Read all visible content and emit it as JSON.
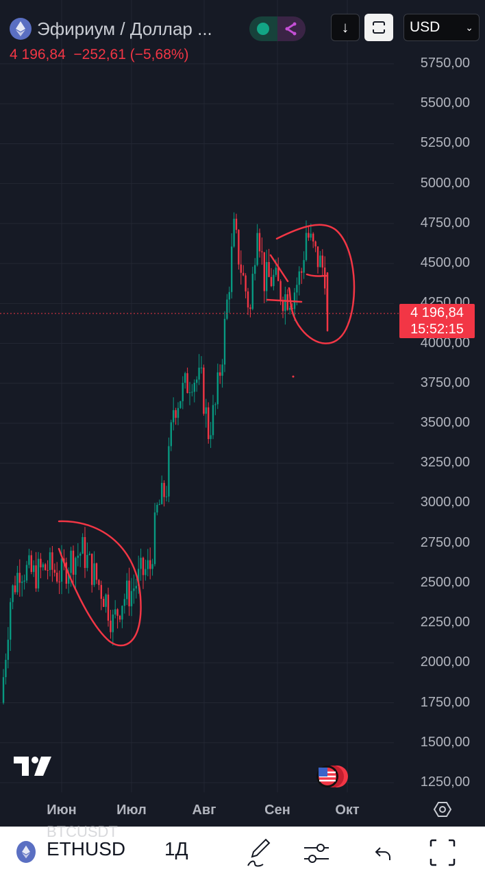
{
  "header": {
    "title": "Эфириум / Доллар ...",
    "price": "4 196,84",
    "change": "−252,61 (−5,68%)",
    "currency": "USD",
    "download_icon": "arrow-down-icon",
    "layout_icon": "frame-icon"
  },
  "price_axis": {
    "labels": [
      "5750,00",
      "5500,00",
      "5250,00",
      "5000,00",
      "4750,00",
      "4500,00",
      "4250,00",
      "4000,00",
      "3750,00",
      "3500,00",
      "3250,00",
      "3000,00",
      "2750,00",
      "2500,00",
      "2250,00",
      "2000,00",
      "1750,00",
      "1500,00",
      "1250,00"
    ],
    "current_price": "4 196,84",
    "countdown": "15:52:15"
  },
  "time_axis": {
    "labels": [
      "Июн",
      "Июл",
      "Авг",
      "Сен",
      "Окт"
    ]
  },
  "colors": {
    "up": "#089981",
    "down": "#f23645",
    "background": "#161a25",
    "annotation": "#f23645"
  },
  "chart_data": {
    "type": "candlestick",
    "symbol": "ETHUSD",
    "interval": "1Д",
    "ylim": [
      1250,
      5750
    ],
    "closes": [
      [
        "05-06",
        1750
      ],
      [
        "05-10",
        2400
      ],
      [
        "05-14",
        2600
      ],
      [
        "05-20",
        2550
      ],
      [
        "05-26",
        2600
      ],
      [
        "06-01",
        2550
      ],
      [
        "06-05",
        2650
      ],
      [
        "06-10",
        2700
      ],
      [
        "06-15",
        2550
      ],
      [
        "06-20",
        2400
      ],
      [
        "06-23",
        2250
      ],
      [
        "06-27",
        2400
      ],
      [
        "07-01",
        2450
      ],
      [
        "07-05",
        2550
      ],
      [
        "07-09",
        2600
      ],
      [
        "07-12",
        2950
      ],
      [
        "07-16",
        3100
      ],
      [
        "07-19",
        3600
      ],
      [
        "07-23",
        3700
      ],
      [
        "07-27",
        3800
      ],
      [
        "07-31",
        3750
      ],
      [
        "08-03",
        3450
      ],
      [
        "08-06",
        3600
      ],
      [
        "08-09",
        3950
      ],
      [
        "08-12",
        4400
      ],
      [
        "08-14",
        4700
      ],
      [
        "08-18",
        4400
      ],
      [
        "08-21",
        4200
      ],
      [
        "08-24",
        4800
      ],
      [
        "08-27",
        4400
      ],
      [
        "08-31",
        4400
      ],
      [
        "09-04",
        4300
      ],
      [
        "09-08",
        4300
      ],
      [
        "09-12",
        4450
      ],
      [
        "09-14",
        4700
      ],
      [
        "09-18",
        4550
      ],
      [
        "09-22",
        4450
      ],
      [
        "09-23",
        4197
      ]
    ]
  },
  "bottom_bar": {
    "ghost_symbol": "BTCUSDT",
    "symbol": "ETHUSD",
    "interval": "1Д"
  }
}
